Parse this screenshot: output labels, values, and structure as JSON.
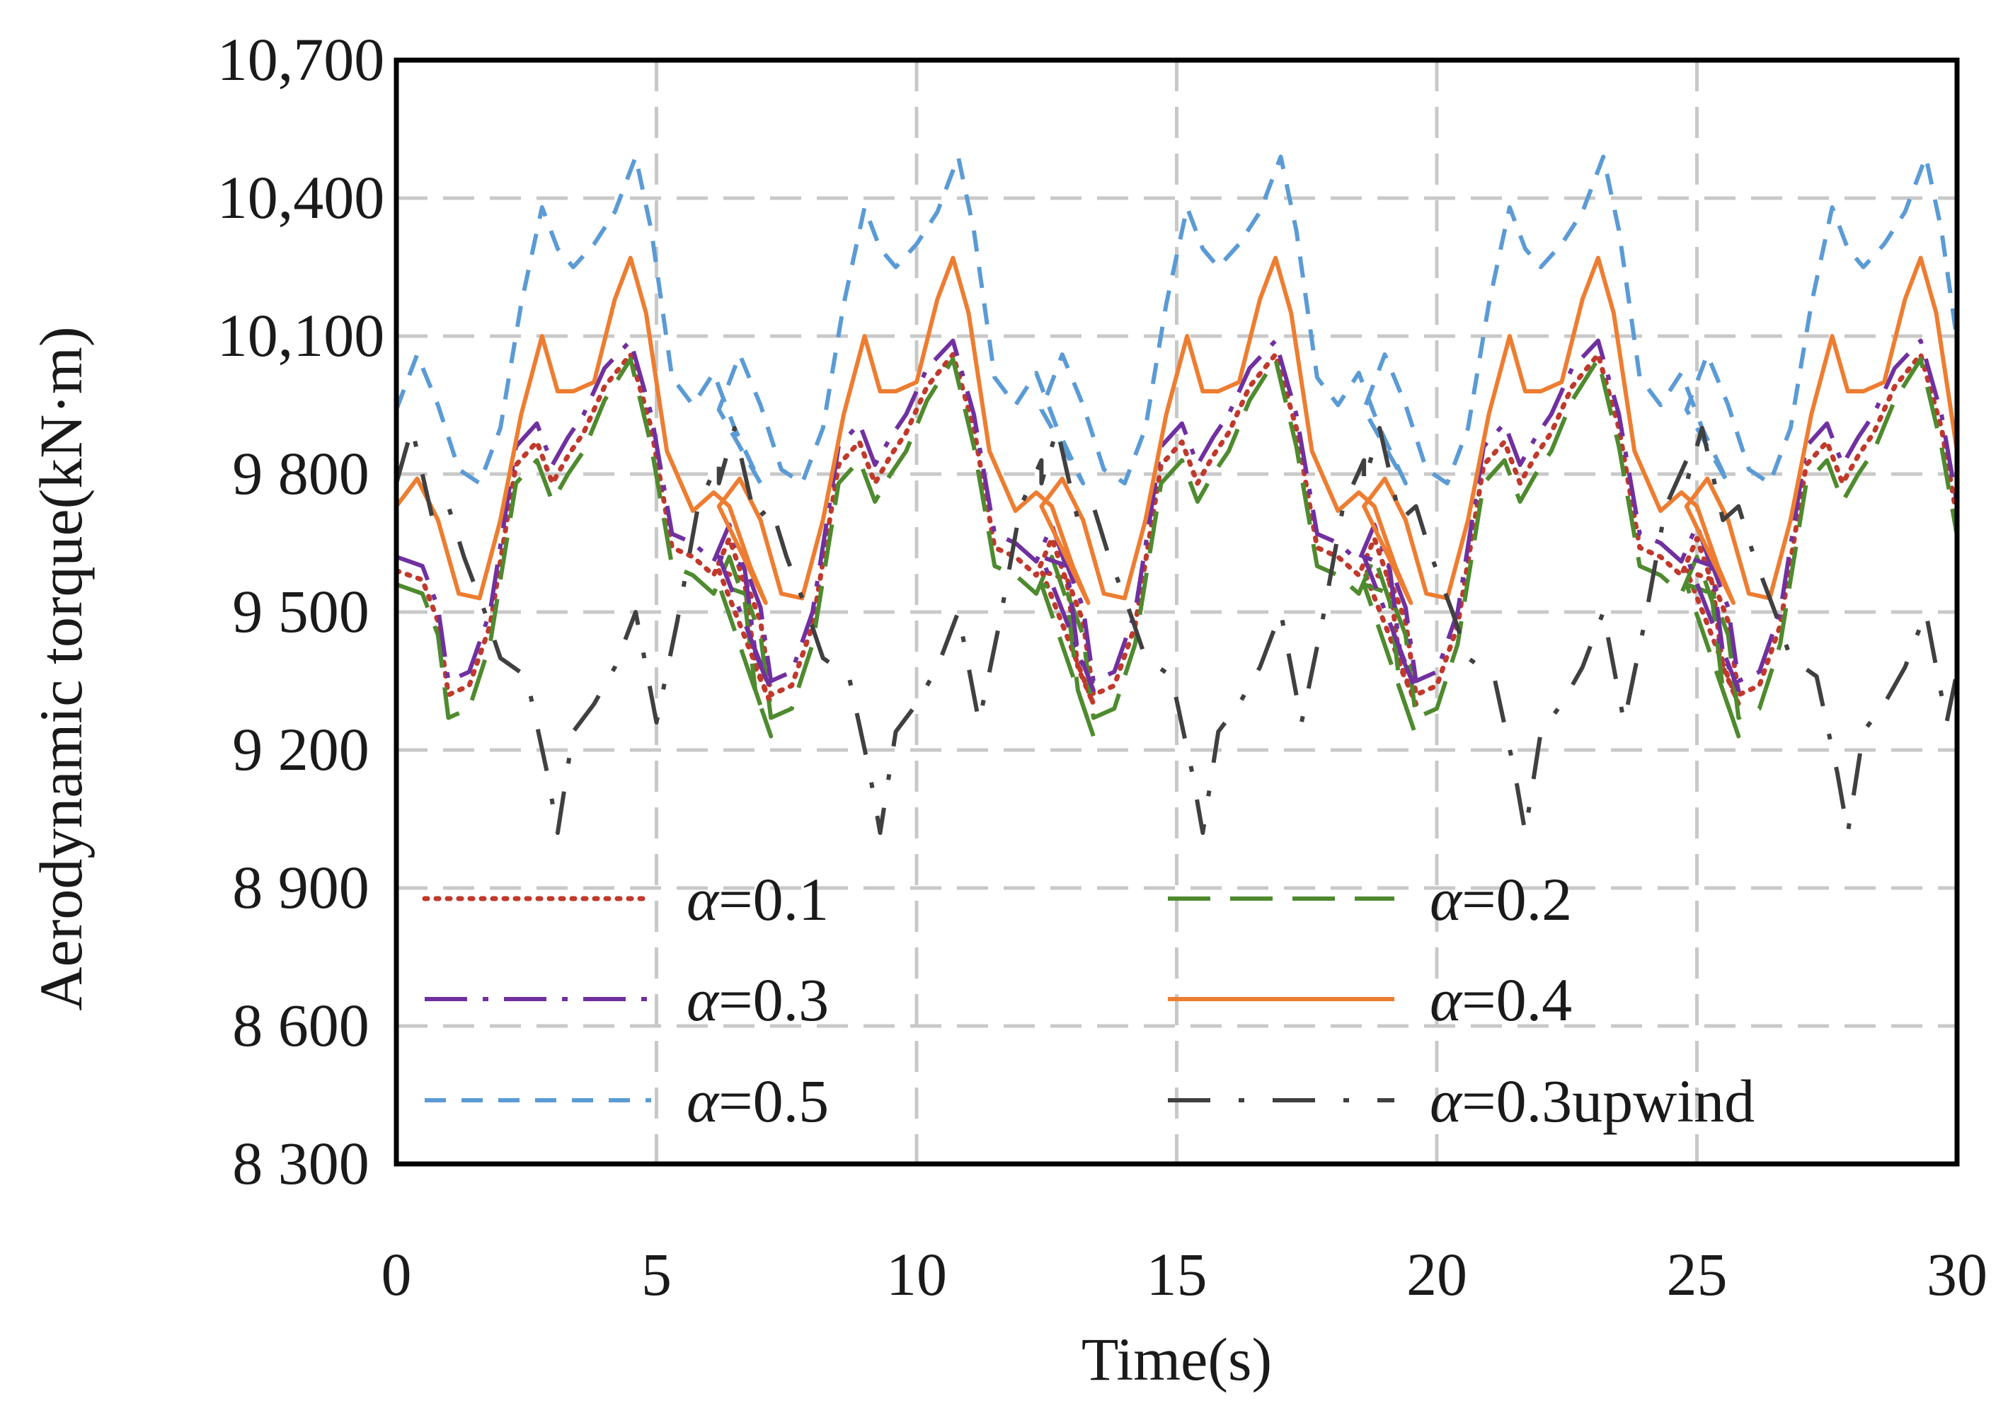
{
  "chart_data": {
    "type": "line",
    "title": "",
    "xlabel": "Time(s)",
    "ylabel": "Aerodynamic torque(kN·m)",
    "xlim": [
      0,
      30
    ],
    "ylim": [
      8300,
      10700
    ],
    "x_ticks": [
      0,
      5,
      10,
      15,
      20,
      25,
      30
    ],
    "x_tick_labels": [
      "0",
      "5",
      "10",
      "15",
      "20",
      "25",
      "30"
    ],
    "y_ticks": [
      8300,
      8600,
      8900,
      9200,
      9500,
      9800,
      10100,
      10400,
      10700
    ],
    "y_tick_labels": [
      "8 300",
      "8 600",
      "8 900",
      "9 200",
      "9 500",
      "9 800",
      "10,100",
      "10,400",
      "10,700"
    ],
    "grid": true,
    "legend_position": "lower-center inside plot, two columns",
    "period_s": 6.2,
    "series": [
      {
        "name": "α=0.1",
        "symbol": "α",
        "label_suffix": "=0.1",
        "color": "#c0392b",
        "dash": "dotted",
        "x": [
          0,
          0.5,
          0.8,
          1.0,
          1.4,
          1.8,
          2.3,
          2.7,
          3.0,
          3.3,
          3.6,
          4.0,
          4.5,
          4.9,
          5.3,
          5.7,
          6.1,
          6.4,
          6.7,
          6.9,
          7.2
        ],
        "y": [
          9590,
          9570,
          9480,
          9320,
          9340,
          9470,
          9820,
          9870,
          9780,
          9840,
          9890,
          9990,
          10060,
          9900,
          9640,
          9620,
          9580,
          9660,
          9560,
          9380,
          9300
        ]
      },
      {
        "name": "α=0.2",
        "symbol": "α",
        "label_suffix": "=0.2",
        "color": "#4e8a2e",
        "dash": "long-dash",
        "x": [
          0,
          0.5,
          0.8,
          1.0,
          1.4,
          1.8,
          2.3,
          2.7,
          3.0,
          3.3,
          3.6,
          4.0,
          4.5,
          4.9,
          5.3,
          5.7,
          6.1,
          6.4,
          6.7,
          6.9,
          7.2
        ],
        "y": [
          9560,
          9540,
          9450,
          9270,
          9290,
          9430,
          9780,
          9830,
          9740,
          9800,
          9850,
          9960,
          10050,
          9860,
          9600,
          9580,
          9540,
          9620,
          9520,
          9330,
          9230
        ]
      },
      {
        "name": "α=0.3",
        "symbol": "α",
        "label_suffix": "=0.3",
        "color": "#7030a0",
        "dash": "dash-dot",
        "x": [
          0,
          0.5,
          0.8,
          1.0,
          1.4,
          1.8,
          2.3,
          2.7,
          3.0,
          3.3,
          3.6,
          4.0,
          4.5,
          4.9,
          5.3,
          5.7,
          6.1,
          6.4,
          6.7,
          6.9,
          7.2
        ],
        "y": [
          9620,
          9600,
          9510,
          9350,
          9370,
          9500,
          9860,
          9910,
          9820,
          9880,
          9930,
          10030,
          10090,
          9930,
          9670,
          9650,
          9610,
          9690,
          9590,
          9410,
          9330
        ]
      },
      {
        "name": "α=0.4",
        "symbol": "α",
        "label_suffix": "=0.4",
        "color": "#ed7d31",
        "dash": "solid",
        "x": [
          0,
          0.4,
          0.8,
          1.2,
          1.6,
          2.0,
          2.4,
          2.8,
          3.1,
          3.4,
          3.8,
          4.2,
          4.5,
          4.8,
          5.2,
          5.7,
          6.1,
          6.4,
          6.8,
          7.1
        ],
        "y": [
          9730,
          9790,
          9700,
          9540,
          9530,
          9700,
          9930,
          10100,
          9980,
          9980,
          10000,
          10180,
          10270,
          10150,
          9850,
          9720,
          9760,
          9730,
          9600,
          9520
        ]
      },
      {
        "name": "α=0.5",
        "symbol": "α",
        "label_suffix": "=0.5",
        "color": "#5b9bd5",
        "dash": "dashed",
        "x": [
          0,
          0.4,
          0.8,
          1.2,
          1.6,
          2.0,
          2.4,
          2.8,
          3.1,
          3.4,
          3.8,
          4.2,
          4.6,
          4.9,
          5.3,
          5.7,
          6.1,
          6.5,
          7.0
        ],
        "y": [
          9940,
          10060,
          9950,
          9810,
          9780,
          9900,
          10170,
          10380,
          10290,
          10250,
          10300,
          10370,
          10490,
          10330,
          10010,
          9950,
          10020,
          9900,
          9780
        ]
      },
      {
        "name": "α=0.3upwind",
        "symbol": "α",
        "label_suffix": "=0.3upwind",
        "color": "#404040",
        "dash": "long-dash-dot",
        "x": [
          0,
          0.3,
          0.7,
          1.0,
          1.3,
          1.7,
          2.0,
          2.5,
          2.9,
          3.1,
          3.4,
          3.8,
          4.2,
          4.6,
          5.0,
          5.4,
          5.8,
          6.2
        ],
        "y": [
          9780,
          9900,
          9700,
          9730,
          9620,
          9500,
          9400,
          9360,
          9150,
          9020,
          9240,
          9300,
          9380,
          9500,
          9260,
          9480,
          9730,
          9830
        ]
      }
    ]
  }
}
